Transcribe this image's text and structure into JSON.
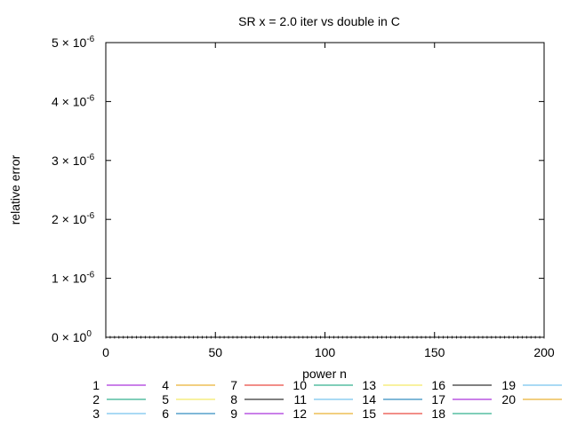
{
  "chart_data": {
    "type": "line",
    "title": "SR x = 2.0 iter vs double in C",
    "xlabel": "power n",
    "ylabel": "relative error",
    "xlim": [
      0,
      200
    ],
    "ylim": [
      0,
      5e-06
    ],
    "x_ticks": [
      {
        "value": 0,
        "label": "0"
      },
      {
        "value": 50,
        "label": "50"
      },
      {
        "value": 100,
        "label": "100"
      },
      {
        "value": 150,
        "label": "150"
      },
      {
        "value": 200,
        "label": "200"
      }
    ],
    "y_ticks": [
      {
        "value": 0,
        "mantissa": "0 × 10",
        "exp": "0"
      },
      {
        "value": 1e-06,
        "mantissa": "1 × 10",
        "exp": "-6"
      },
      {
        "value": 2e-06,
        "mantissa": "2 × 10",
        "exp": "-6"
      },
      {
        "value": 3e-06,
        "mantissa": "3 × 10",
        "exp": "-6"
      },
      {
        "value": 4e-06,
        "mantissa": "4 × 10",
        "exp": "-6"
      },
      {
        "value": 5e-06,
        "mantissa": "5 × 10",
        "exp": "-6"
      }
    ],
    "grid": false,
    "legend_position": "bottom",
    "series": [
      {
        "name": "1",
        "color": "#9400d3",
        "values": [
          0,
          0
        ]
      },
      {
        "name": "2",
        "color": "#009e73",
        "values": [
          0,
          0
        ]
      },
      {
        "name": "3",
        "color": "#56b4e9",
        "values": [
          0,
          0
        ]
      },
      {
        "name": "4",
        "color": "#e69f00",
        "values": [
          0,
          0
        ]
      },
      {
        "name": "5",
        "color": "#f0e442",
        "values": [
          0,
          0
        ]
      },
      {
        "name": "6",
        "color": "#0072b2",
        "values": [
          0,
          0
        ]
      },
      {
        "name": "7",
        "color": "#e51e10",
        "values": [
          0,
          0
        ]
      },
      {
        "name": "8",
        "color": "#000000",
        "values": [
          0,
          0
        ]
      },
      {
        "name": "9",
        "color": "#9400d3",
        "values": [
          0,
          0
        ]
      },
      {
        "name": "10",
        "color": "#009e73",
        "values": [
          0,
          0
        ]
      },
      {
        "name": "11",
        "color": "#56b4e9",
        "values": [
          0,
          0
        ]
      },
      {
        "name": "12",
        "color": "#e69f00",
        "values": [
          0,
          0
        ]
      },
      {
        "name": "13",
        "color": "#f0e442",
        "values": [
          0,
          0
        ]
      },
      {
        "name": "14",
        "color": "#0072b2",
        "values": [
          0,
          0
        ]
      },
      {
        "name": "15",
        "color": "#e51e10",
        "values": [
          0,
          0
        ]
      },
      {
        "name": "16",
        "color": "#000000",
        "values": [
          0,
          0
        ]
      },
      {
        "name": "17",
        "color": "#9400d3",
        "values": [
          0,
          0
        ]
      },
      {
        "name": "18",
        "color": "#009e73",
        "values": [
          0,
          0
        ]
      },
      {
        "name": "19",
        "color": "#56b4e9",
        "values": [
          0,
          0
        ]
      },
      {
        "name": "20",
        "color": "#e69f00",
        "values": [
          0,
          0
        ]
      }
    ],
    "x": [
      0,
      200
    ]
  }
}
